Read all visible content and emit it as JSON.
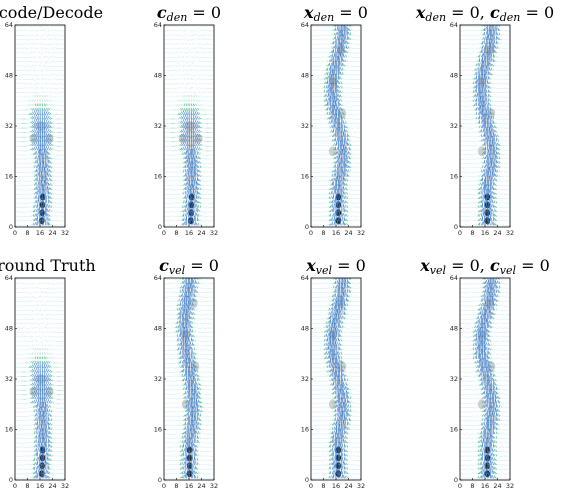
{
  "figure": {
    "panels": [
      {
        "title_parts": [
          {
            "t": "Encode/Decode",
            "style": "plain"
          }
        ],
        "variant": 0
      },
      {
        "title_parts": [
          {
            "t": "c",
            "style": "math"
          },
          {
            "t": "den",
            "style": "sub"
          },
          {
            "t": " = 0",
            "style": "plain"
          }
        ],
        "variant": 0
      },
      {
        "title_parts": [
          {
            "t": "x",
            "style": "math"
          },
          {
            "t": "den",
            "style": "sub"
          },
          {
            "t": " = 0",
            "style": "plain"
          }
        ],
        "variant": 1
      },
      {
        "title_parts": [
          {
            "t": "x",
            "style": "math"
          },
          {
            "t": "den",
            "style": "sub"
          },
          {
            "t": " = 0, ",
            "style": "plain"
          },
          {
            "t": "c",
            "style": "math"
          },
          {
            "t": "den",
            "style": "sub"
          },
          {
            "t": " = 0",
            "style": "plain"
          }
        ],
        "variant": 1
      },
      {
        "title_parts": [
          {
            "t": "Ground Truth",
            "style": "plain"
          }
        ],
        "variant": 0
      },
      {
        "title_parts": [
          {
            "t": "c",
            "style": "math"
          },
          {
            "t": "vel",
            "style": "sub"
          },
          {
            "t": " = 0",
            "style": "plain"
          }
        ],
        "variant": 2
      },
      {
        "title_parts": [
          {
            "t": "x",
            "style": "math"
          },
          {
            "t": "vel",
            "style": "sub"
          },
          {
            "t": " = 0",
            "style": "plain"
          }
        ],
        "variant": 1
      },
      {
        "title_parts": [
          {
            "t": "x",
            "style": "math"
          },
          {
            "t": "vel",
            "style": "sub"
          },
          {
            "t": " = 0, ",
            "style": "plain"
          },
          {
            "t": "c",
            "style": "math"
          },
          {
            "t": "vel",
            "style": "sub"
          },
          {
            "t": " = 0",
            "style": "plain"
          }
        ],
        "variant": 1
      }
    ],
    "x_ticks": [
      0,
      8,
      16,
      24,
      32
    ],
    "y_ticks": [
      0,
      16,
      32,
      48,
      64
    ],
    "xlim": [
      0,
      32
    ],
    "ylim": [
      0,
      64
    ],
    "colors": {
      "arrow_blue": "#3a7fd0",
      "arrow_green": "#3fb58a",
      "arrow_light": "#8fd0e8",
      "smoke_gray": "#8a8a8a",
      "smoke_dark": "#000000"
    }
  }
}
